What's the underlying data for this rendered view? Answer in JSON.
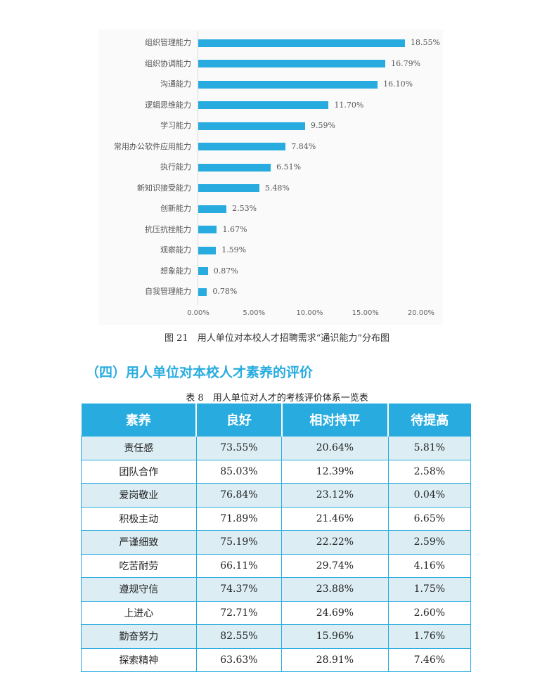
{
  "chart_data": {
    "type": "bar",
    "orientation": "horizontal",
    "categories": [
      "组织管理能力",
      "组织协调能力",
      "沟通能力",
      "逻辑思维能力",
      "学习能力",
      "常用办公软件应用能力",
      "执行能力",
      "新知识接受能力",
      "创新能力",
      "抗压抗挫能力",
      "观察能力",
      "想象能力",
      "自我管理能力"
    ],
    "values": [
      18.55,
      16.79,
      16.1,
      11.7,
      9.59,
      7.84,
      6.51,
      5.48,
      2.53,
      1.67,
      1.59,
      0.87,
      0.78
    ],
    "labels": [
      "18.55%",
      "16.79%",
      "16.10%",
      "11.70%",
      "9.59%",
      "7.84%",
      "6.51%",
      "5.48%",
      "2.53%",
      "1.67%",
      "1.59%",
      "0.87%",
      "0.78%"
    ],
    "xticks": [
      "0.00%",
      "5.00%",
      "10.00%",
      "15.00%",
      "20.00%"
    ],
    "xlim": [
      0,
      20
    ],
    "bar_color": "#28ace0",
    "title": "图 21　用人单位对本校人才招聘需求“通识能力”分布图"
  },
  "section_heading": "（四）用人单位对本校人才素养的评价",
  "table": {
    "caption": "表 8　用人单位对人才的考核评价体系一览表",
    "headers": [
      "素养",
      "良好",
      "相对持平",
      "待提高"
    ],
    "rows": [
      [
        "责任感",
        "73.55%",
        "20.64%",
        "5.81%"
      ],
      [
        "团队合作",
        "85.03%",
        "12.39%",
        "2.58%"
      ],
      [
        "爱岗敬业",
        "76.84%",
        "23.12%",
        "0.04%"
      ],
      [
        "积极主动",
        "71.89%",
        "21.46%",
        "6.65%"
      ],
      [
        "严谨细致",
        "75.19%",
        "22.22%",
        "2.59%"
      ],
      [
        "吃苦耐劳",
        "66.11%",
        "29.74%",
        "4.16%"
      ],
      [
        "遵规守信",
        "74.37%",
        "23.88%",
        "1.75%"
      ],
      [
        "上进心",
        "72.71%",
        "24.69%",
        "2.60%"
      ],
      [
        "勤奋努力",
        "82.55%",
        "15.96%",
        "1.76%"
      ],
      [
        "探索精神",
        "63.63%",
        "28.91%",
        "7.46%"
      ]
    ]
  }
}
